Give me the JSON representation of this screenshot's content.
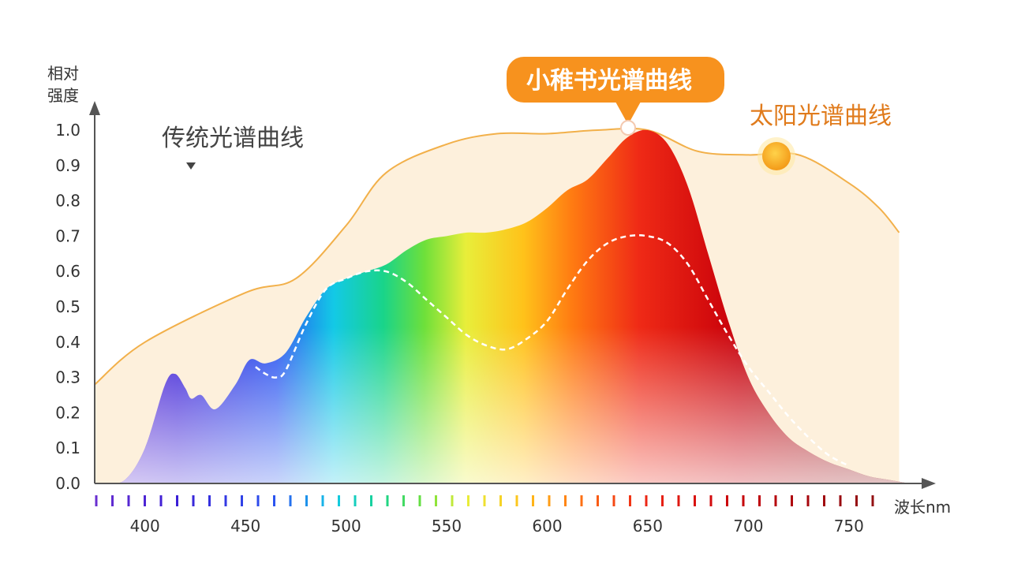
{
  "chart_data": {
    "type": "area",
    "yaxis_label_line1": "相对",
    "yaxis_label_line2": "强度",
    "xaxis_label": "波长nm",
    "xlim": [
      375,
      785
    ],
    "ylim": [
      0,
      1.0
    ],
    "y_ticks": [
      "0.0",
      "0.1",
      "0.2",
      "0.3",
      "0.4",
      "0.5",
      "0.6",
      "0.7",
      "0.8",
      "0.9",
      "1.0"
    ],
    "x_ticks": [
      "400",
      "450",
      "500",
      "550",
      "600",
      "650",
      "700",
      "750"
    ],
    "annotations": {
      "traditional": "传统光谱曲线",
      "xiaozhishu": "小稚书光谱曲线",
      "sunlight": "太阳光谱曲线"
    },
    "colors": {
      "sun_fill": "#fdf0dc",
      "sun_line": "#f2b04a",
      "callout": "#f7921e",
      "dashed": "#ffffff",
      "axis": "#555555"
    },
    "series": [
      {
        "name": "太阳光谱曲线",
        "x": [
          375,
          400,
          450,
          475,
          500,
          520,
          550,
          575,
          600,
          625,
          650,
          675,
          700,
          725,
          750,
          765,
          775
        ],
        "y": [
          0.28,
          0.4,
          0.54,
          0.58,
          0.73,
          0.88,
          0.96,
          0.99,
          0.99,
          1.0,
          1.0,
          0.94,
          0.93,
          0.93,
          0.85,
          0.78,
          0.71
        ]
      },
      {
        "name": "小稚书光谱曲线",
        "x": [
          380,
          390,
          400,
          410,
          415,
          420,
          423,
          428,
          435,
          445,
          452,
          460,
          470,
          480,
          490,
          500,
          510,
          520,
          530,
          540,
          550,
          560,
          570,
          580,
          590,
          600,
          610,
          620,
          630,
          640,
          650,
          660,
          670,
          680,
          690,
          700,
          710,
          720,
          730,
          740,
          750,
          760,
          770,
          780
        ],
        "y": [
          0.0,
          0.01,
          0.1,
          0.28,
          0.31,
          0.27,
          0.24,
          0.25,
          0.21,
          0.28,
          0.35,
          0.34,
          0.37,
          0.47,
          0.55,
          0.58,
          0.6,
          0.62,
          0.66,
          0.69,
          0.7,
          0.71,
          0.71,
          0.72,
          0.74,
          0.78,
          0.83,
          0.86,
          0.92,
          0.98,
          1.0,
          0.96,
          0.84,
          0.65,
          0.46,
          0.3,
          0.2,
          0.13,
          0.09,
          0.06,
          0.04,
          0.02,
          0.01,
          0.0
        ]
      },
      {
        "name": "传统光谱曲线",
        "x": [
          455,
          460,
          465,
          470,
          480,
          490,
          500,
          510,
          520,
          530,
          540,
          550,
          560,
          570,
          580,
          590,
          600,
          610,
          620,
          630,
          640,
          650,
          660,
          670,
          680,
          690,
          700,
          710,
          720,
          730,
          740,
          750
        ],
        "y": [
          0.33,
          0.31,
          0.3,
          0.32,
          0.45,
          0.55,
          0.58,
          0.6,
          0.6,
          0.57,
          0.52,
          0.47,
          0.42,
          0.39,
          0.38,
          0.41,
          0.46,
          0.55,
          0.63,
          0.68,
          0.7,
          0.7,
          0.68,
          0.62,
          0.52,
          0.42,
          0.33,
          0.26,
          0.19,
          0.13,
          0.08,
          0.05
        ]
      }
    ]
  }
}
